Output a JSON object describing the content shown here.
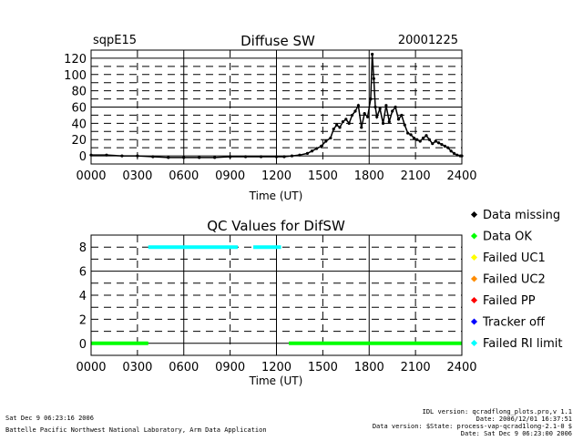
{
  "header": {
    "site": "sqpE15",
    "title": "Diffuse SW",
    "date": "20001225"
  },
  "chart_data": [
    {
      "type": "scatter",
      "title": "Diffuse SW",
      "xlabel": "Time (UT)",
      "ylabel": "",
      "xlim": [
        0,
        2400
      ],
      "ylim": [
        -10,
        130
      ],
      "x_ticks": [
        "0000",
        "0300",
        "0600",
        "0900",
        "1200",
        "1500",
        "1800",
        "2100",
        "2400"
      ],
      "y_ticks": [
        0,
        20,
        40,
        60,
        80,
        100,
        120
      ],
      "grid": true,
      "series": [
        {
          "color": "#000000",
          "x": [
            0,
            100,
            200,
            300,
            400,
            500,
            600,
            700,
            800,
            900,
            1000,
            1100,
            1200,
            1250,
            1300,
            1350,
            1400,
            1430,
            1460,
            1490,
            1520,
            1550,
            1570,
            1590,
            1610,
            1630,
            1650,
            1670,
            1690,
            1710,
            1730,
            1750,
            1770,
            1790,
            1810,
            1820,
            1830,
            1840,
            1850,
            1870,
            1890,
            1910,
            1930,
            1950,
            1970,
            1990,
            2010,
            2030,
            2050,
            2070,
            2090,
            2110,
            2130,
            2150,
            2170,
            2190,
            2210,
            2230,
            2250,
            2270,
            2290,
            2310,
            2330,
            2350,
            2370,
            2390,
            2400
          ],
          "y": [
            1,
            1,
            0,
            0,
            -1,
            -2,
            -2,
            -2,
            -2,
            -1,
            -1,
            -1,
            -1,
            -1,
            0,
            1,
            3,
            6,
            9,
            12,
            18,
            22,
            33,
            38,
            35,
            42,
            45,
            40,
            50,
            55,
            62,
            35,
            52,
            48,
            70,
            125,
            95,
            60,
            48,
            58,
            40,
            62,
            42,
            55,
            60,
            45,
            50,
            38,
            28,
            26,
            22,
            20,
            18,
            22,
            25,
            20,
            15,
            18,
            16,
            14,
            12,
            10,
            6,
            3,
            1,
            0,
            0
          ]
        }
      ]
    },
    {
      "type": "scatter",
      "title": "QC Values for DifSW",
      "xlabel": "Time (UT)",
      "ylabel": "",
      "xlim": [
        0,
        2400
      ],
      "ylim": [
        -1,
        9
      ],
      "x_ticks": [
        "0000",
        "0300",
        "0600",
        "0900",
        "1200",
        "1500",
        "1800",
        "2100",
        "2400"
      ],
      "y_ticks": [
        0,
        2,
        4,
        6,
        8
      ],
      "grid": true,
      "legend": {
        "position": "right",
        "entries": [
          {
            "label": "Data missing",
            "color": "#000000"
          },
          {
            "label": "Data OK",
            "color": "#00ff00"
          },
          {
            "label": "Failed UC1",
            "color": "#ffff00"
          },
          {
            "label": "Failed UC2",
            "color": "#ff8c00"
          },
          {
            "label": "Failed PP",
            "color": "#ff0000"
          },
          {
            "label": "Tracker off",
            "color": "#0000ff"
          },
          {
            "label": "Failed RI limit",
            "color": "#00ffff"
          }
        ]
      },
      "series": [
        {
          "label": "Data OK",
          "color": "#00ff00",
          "segments": [
            [
              0,
              370,
              0
            ],
            [
              1280,
              2400,
              0
            ]
          ]
        },
        {
          "label": "Failed RI limit",
          "color": "#00ffff",
          "segments": [
            [
              370,
              950,
              8
            ],
            [
              1050,
              1230,
              8
            ]
          ]
        }
      ]
    }
  ],
  "footer": {
    "run_date": "Sat Dec  9 06:23:16 2006",
    "lab": "Battelle Pacific Northwest National Laboratory, Arm Data Application",
    "idl_version": "IDL version: qcradflong_plots.pro,v 1.1",
    "date": "Date: 2006/12/01 16:37:51",
    "data_version": "Data version: $State: process-vap-qcrad1long-2.1-0 $",
    "date2": "Date: Sat Dec  9 06:23:00 2006"
  }
}
